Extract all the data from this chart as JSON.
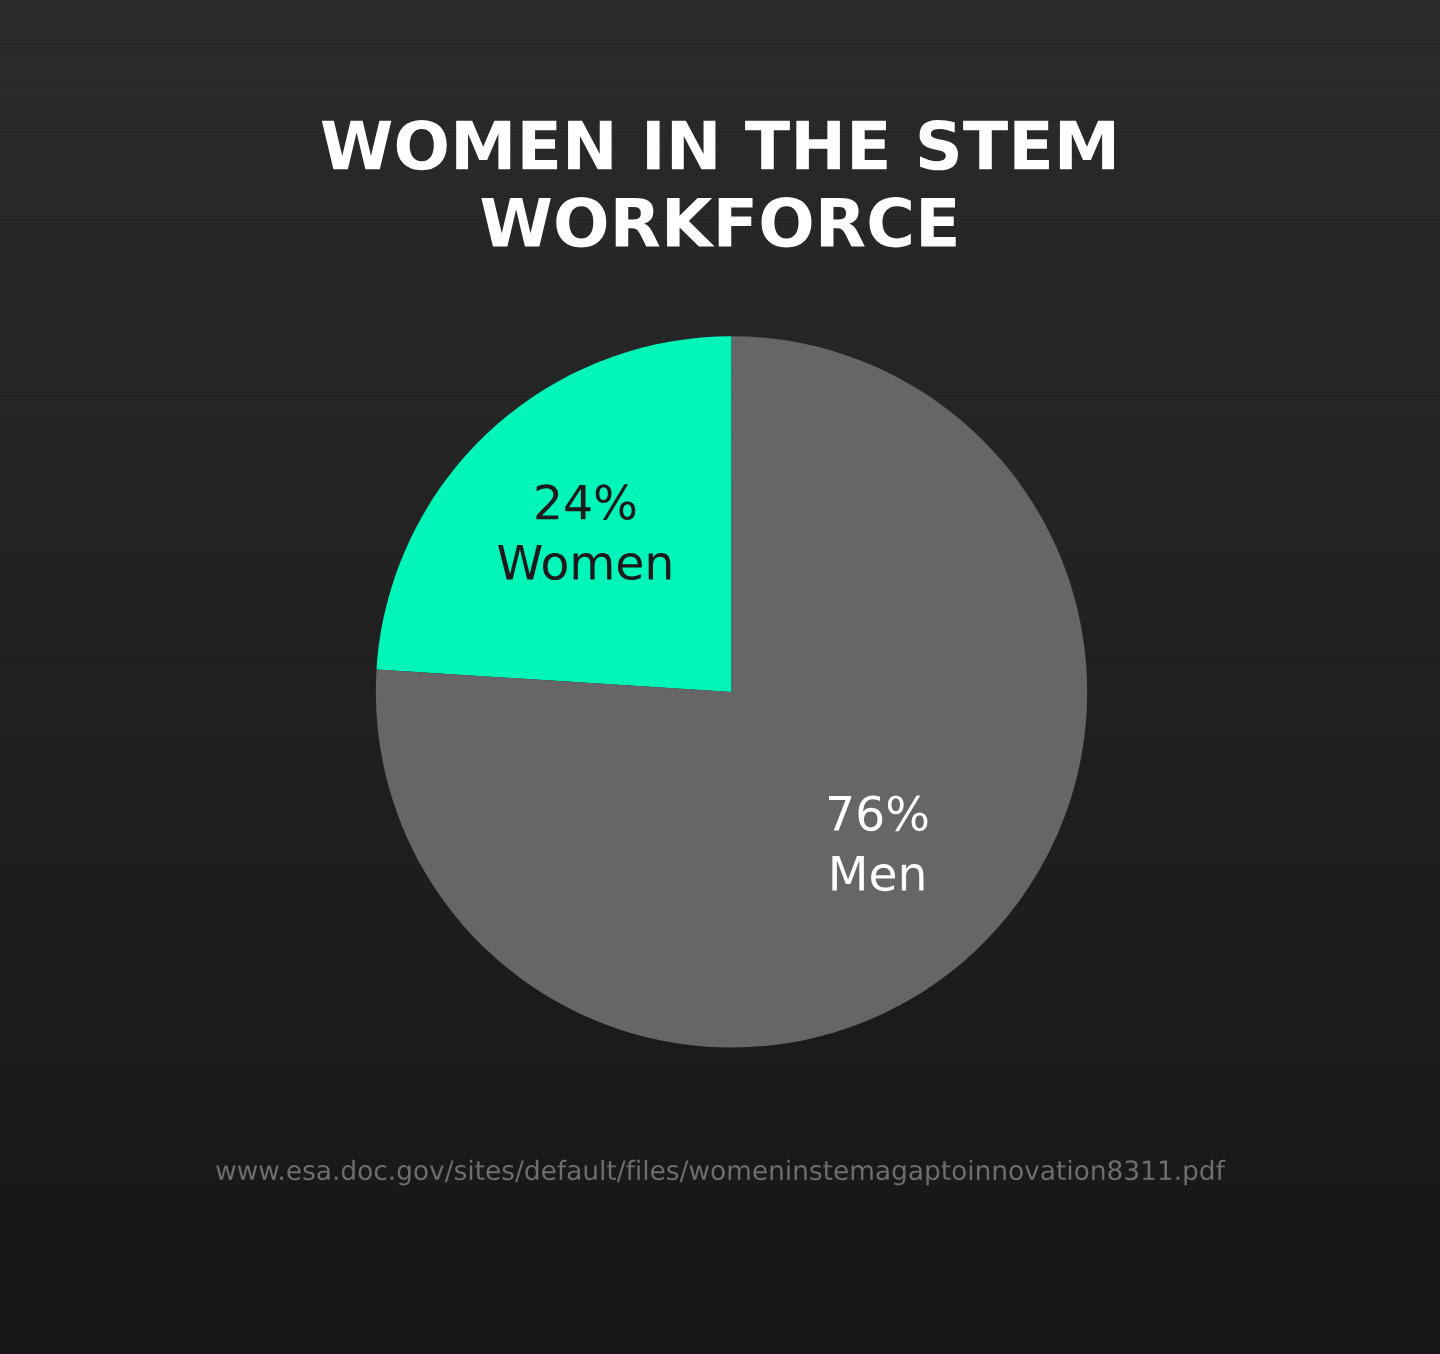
{
  "chart_data": {
    "type": "pie",
    "title": "WOMEN IN THE STEM\nWORKFORCE",
    "categories": [
      "Women",
      "Men"
    ],
    "values": [
      24,
      76
    ],
    "value_labels": [
      "24%",
      "76%"
    ],
    "colors": [
      "#00f5b9",
      "#666666"
    ],
    "annotations": [
      "www.esa.doc.gov/sites/default/files/womeninstemagaptoinnovation8311.pdf"
    ]
  }
}
